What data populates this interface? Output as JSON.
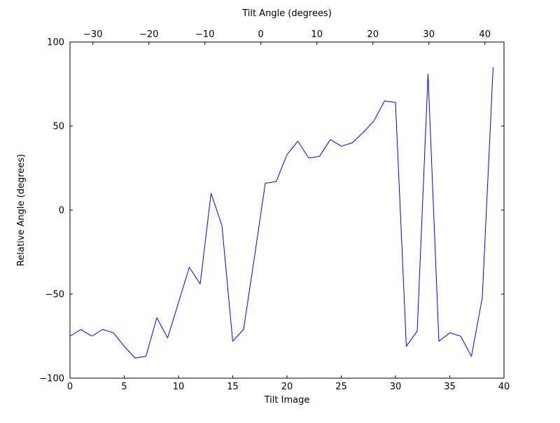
{
  "colors": {
    "background": "#ffffff",
    "axis": "#000000",
    "text": "#000000",
    "line": "#0000ff"
  },
  "chart_data": {
    "type": "line",
    "title": "",
    "xlabel": "Tilt Image",
    "ylabel": "Relative Angle (degrees)",
    "top_xlabel": "Tilt Angle (degrees)",
    "x": [
      0,
      1,
      2,
      3,
      4,
      5,
      6,
      7,
      8,
      9,
      10,
      11,
      12,
      13,
      14,
      15,
      16,
      17,
      18,
      19,
      20,
      21,
      22,
      23,
      24,
      25,
      26,
      27,
      28,
      29,
      30,
      31,
      32,
      33,
      34,
      35,
      36,
      37,
      38,
      39
    ],
    "y": [
      -75,
      -71,
      -75,
      -71,
      -73,
      -81,
      -88,
      -87,
      -64,
      -76,
      -55,
      -34,
      -44,
      10,
      -9,
      -78,
      -71,
      -28,
      16,
      17,
      33,
      41,
      31,
      32,
      42,
      38,
      40,
      46,
      53,
      65,
      64,
      -81,
      -72,
      81,
      -78,
      -73,
      -75,
      -87,
      -52,
      85
    ],
    "xlim": [
      0,
      40
    ],
    "ylim": [
      -100,
      100
    ],
    "xticks": [
      0,
      5,
      10,
      15,
      20,
      25,
      30,
      35,
      40
    ],
    "yticks": [
      -100,
      -50,
      0,
      50,
      100
    ],
    "top_xticks": [
      -30,
      -20,
      -10,
      0,
      10,
      20,
      30,
      40
    ],
    "top_xlim": [
      -34.0875,
      43.4125
    ],
    "grid": false,
    "legend_position": "none",
    "series_name": "relative-angle",
    "line_color": "#0000ff",
    "line_width": 1
  }
}
